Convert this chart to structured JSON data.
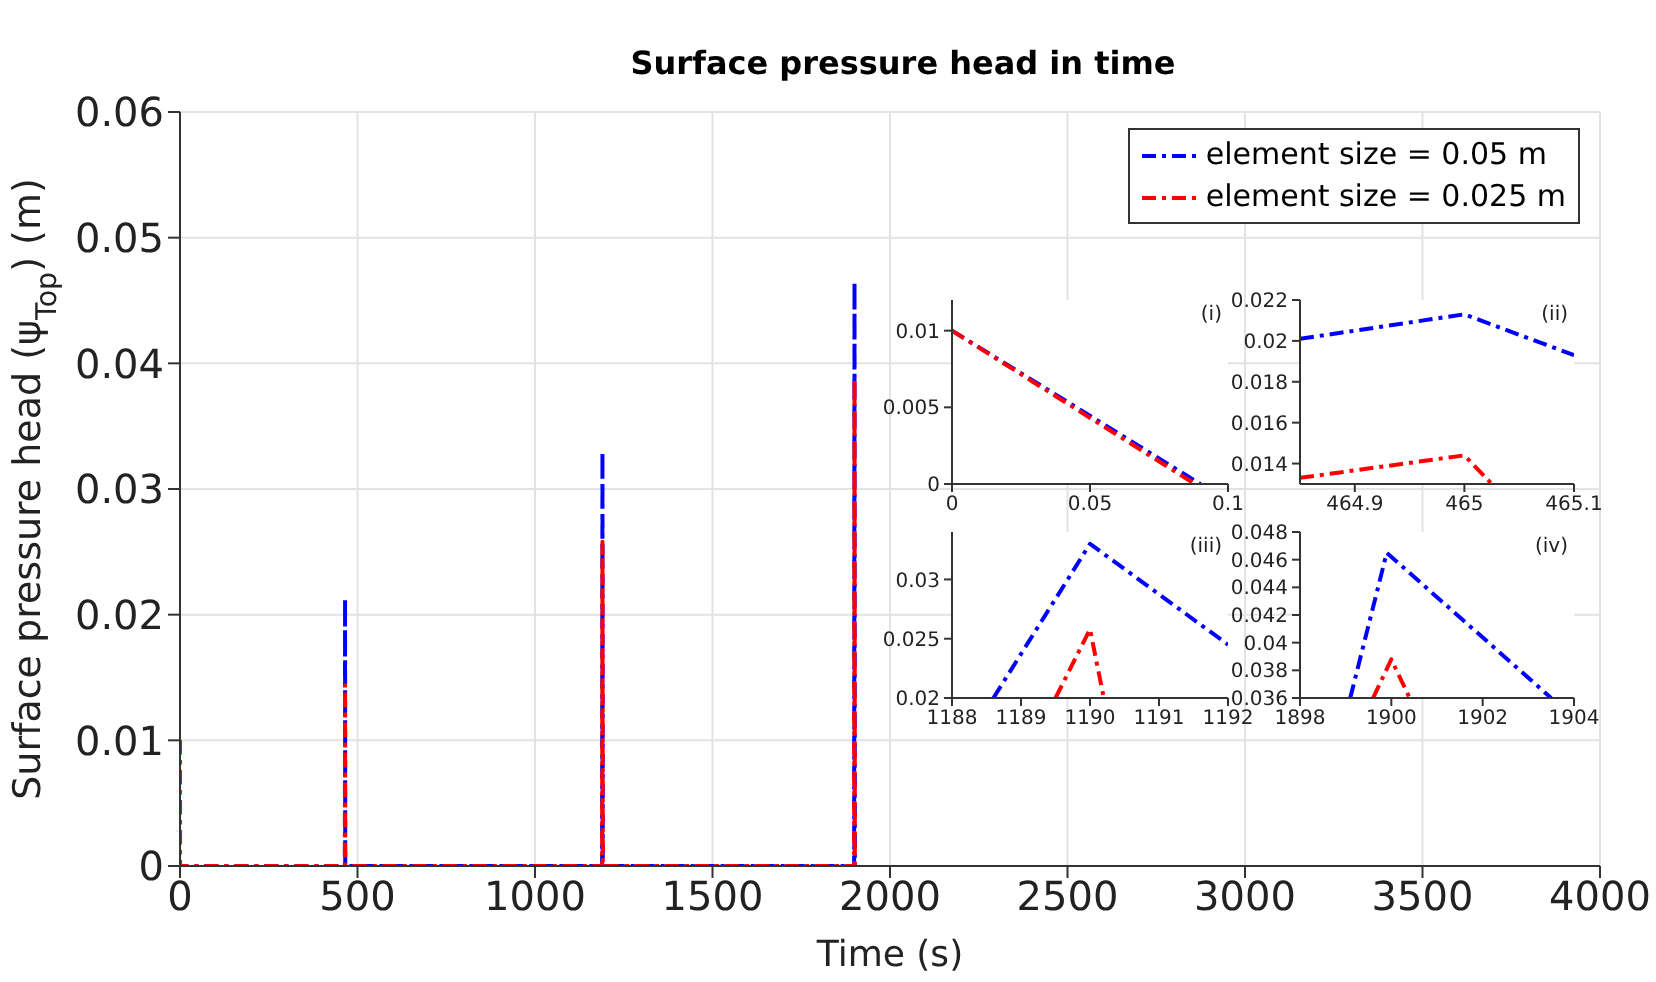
{
  "chart_data": [
    {
      "type": "line",
      "title": "Surface pressure head in time",
      "xlabel": "Time (s)",
      "ylabel": "Surface pressure head (ψ$_{Top}$) (m)",
      "xlim": [
        0,
        4000
      ],
      "xticks": [
        0,
        500,
        1000,
        1500,
        2000,
        2500,
        3000,
        3500,
        4000
      ],
      "ylim": [
        0,
        0.06
      ],
      "yticks": [
        0,
        0.01,
        0.02,
        0.03,
        0.04,
        0.05,
        0.06
      ],
      "grid": true,
      "legend": "top right",
      "line_style": "dashed",
      "series": [
        {
          "name": "element size = 0.05 m",
          "color": "#0000ff",
          "x": [
            0,
            0.09,
            464.5,
            465,
            465.5,
            1189,
            1190,
            1191,
            1899,
            1900,
            1901,
            1905
          ],
          "values": [
            0.01,
            0,
            0,
            0.0213,
            0,
            0,
            0.033,
            0,
            0,
            0.0465,
            0,
            0
          ]
        },
        {
          "name": "element size = 0.025 m",
          "color": "#ff0000",
          "x": [
            0,
            0.088,
            464.5,
            465,
            465.5,
            1189,
            1190,
            1191,
            1899,
            1900,
            1901,
            1905
          ],
          "values": [
            0.01,
            0,
            0,
            0.0144,
            0,
            0,
            0.0258,
            0,
            0,
            0.0388,
            0,
            0
          ]
        }
      ]
    },
    {
      "type": "line",
      "annotations": [
        "(i)"
      ],
      "xlim": [
        0,
        0.1
      ],
      "xticks": [
        0,
        0.05,
        0.1
      ],
      "ylim": [
        0,
        0.012
      ],
      "yticks": [
        0,
        0.005,
        0.01
      ],
      "line_style": "dashed",
      "series": [
        {
          "color": "#0000ff",
          "x": [
            0,
            0.09
          ],
          "values": [
            0.01,
            0
          ]
        },
        {
          "color": "#ff0000",
          "x": [
            0,
            0.088
          ],
          "values": [
            0.01,
            0
          ]
        }
      ]
    },
    {
      "type": "line",
      "annotations": [
        "(ii)"
      ],
      "xlim": [
        464.85,
        465.1
      ],
      "xticks": [
        464.9,
        465,
        465.1
      ],
      "ylim": [
        0.013,
        0.022
      ],
      "yticks": [
        0.014,
        0.016,
        0.018,
        0.02,
        0.022
      ],
      "line_style": "dashed",
      "series": [
        {
          "color": "#0000ff",
          "x": [
            464.85,
            465,
            465.1
          ],
          "values": [
            0.0201,
            0.0213,
            0.0193
          ]
        },
        {
          "color": "#ff0000",
          "x": [
            464.85,
            465,
            465.025
          ],
          "values": [
            0.0133,
            0.0144,
            0.013
          ]
        }
      ]
    },
    {
      "type": "line",
      "annotations": [
        "(iii)"
      ],
      "xlim": [
        1188,
        1192
      ],
      "xticks": [
        1188,
        1189,
        1190,
        1191,
        1192
      ],
      "ylim": [
        0.02,
        0.034
      ],
      "yticks": [
        0.02,
        0.025,
        0.03
      ],
      "line_style": "dashed",
      "series": [
        {
          "color": "#0000ff",
          "x": [
            1188.6,
            1190,
            1192
          ],
          "values": [
            0.02,
            0.033,
            0.0245
          ]
        },
        {
          "color": "#ff0000",
          "x": [
            1189.5,
            1190,
            1190.2
          ],
          "values": [
            0.02,
            0.0258,
            0.02
          ]
        }
      ]
    },
    {
      "type": "line",
      "annotations": [
        "(iv)"
      ],
      "xlim": [
        1898,
        1904
      ],
      "xticks": [
        1898,
        1900,
        1902,
        1904
      ],
      "ylim": [
        0.036,
        0.048
      ],
      "yticks": [
        0.036,
        0.038,
        0.04,
        0.042,
        0.044,
        0.046,
        0.048
      ],
      "line_style": "dashed",
      "series": [
        {
          "color": "#0000ff",
          "x": [
            1899.1,
            1899.9,
            1903.5
          ],
          "values": [
            0.036,
            0.0465,
            0.036
          ]
        },
        {
          "color": "#ff0000",
          "x": [
            1899.6,
            1900,
            1900.4
          ],
          "values": [
            0.036,
            0.0388,
            0.036
          ]
        }
      ]
    }
  ]
}
